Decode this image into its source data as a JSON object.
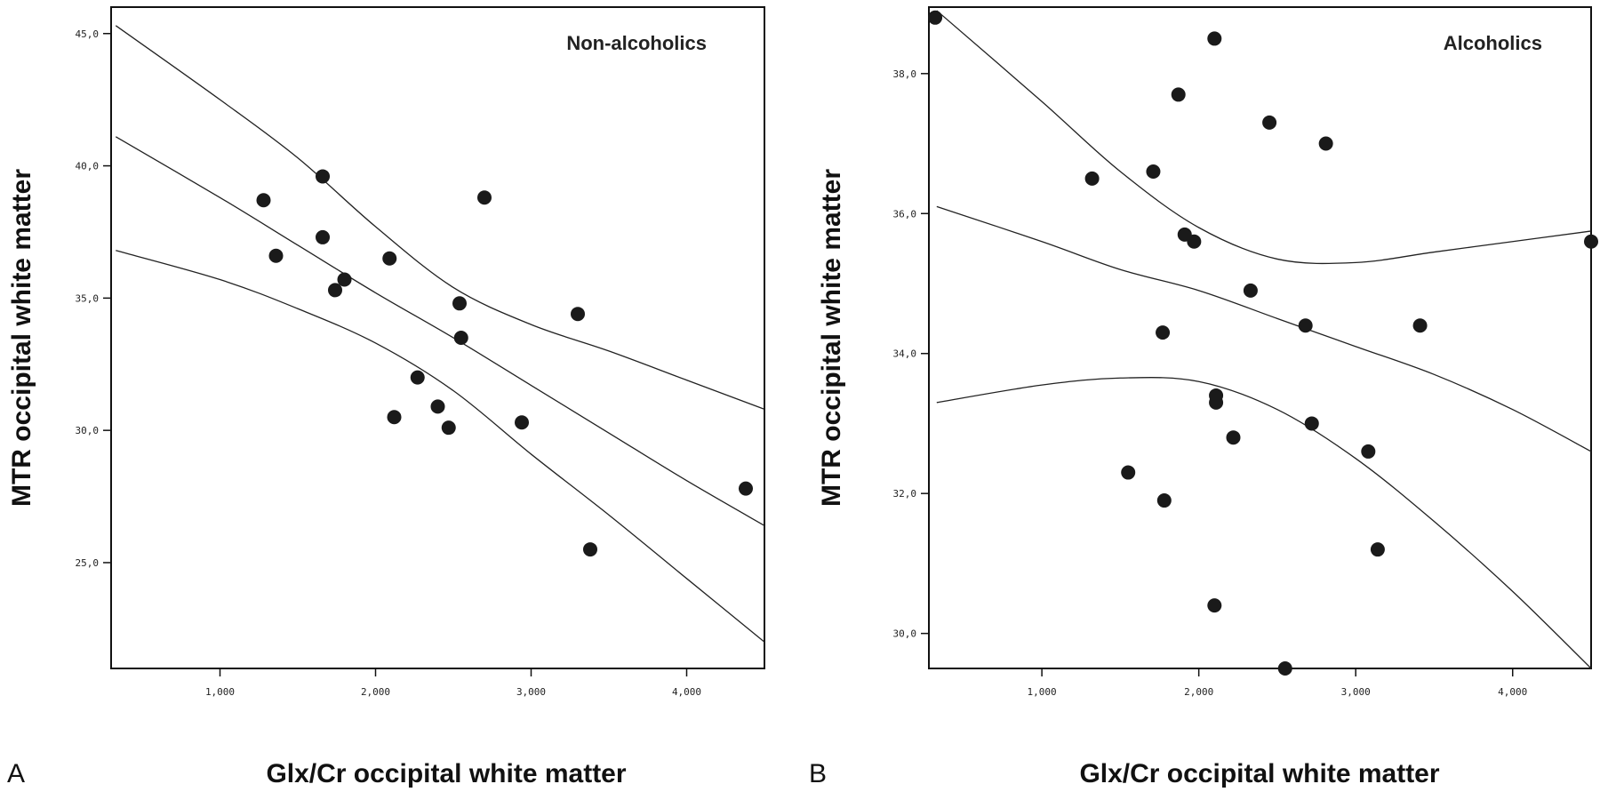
{
  "chart_data": [
    {
      "panel": "A",
      "type": "scatter",
      "annotation": "Non-alcoholics",
      "xlabel": "Glx/Cr occipital white matter",
      "ylabel": "MTR occipital white matter",
      "xlim": [
        0.3,
        4.5
      ],
      "ylim": [
        21.0,
        46.0
      ],
      "x_ticks": [
        1.0,
        2.0,
        3.0,
        4.0
      ],
      "y_ticks": [
        25.0,
        30.0,
        35.0,
        40.0,
        45.0
      ],
      "x_tick_labels": [
        "1,000",
        "2,000",
        "3,000",
        "4,000"
      ],
      "y_tick_labels": [
        "25,0",
        "30,0",
        "35,0",
        "40,0",
        "45,0"
      ],
      "points": [
        {
          "x": 1.28,
          "y": 38.7
        },
        {
          "x": 1.36,
          "y": 36.6
        },
        {
          "x": 1.66,
          "y": 39.6
        },
        {
          "x": 1.66,
          "y": 37.3
        },
        {
          "x": 1.74,
          "y": 35.3
        },
        {
          "x": 1.8,
          "y": 35.7
        },
        {
          "x": 2.09,
          "y": 36.5
        },
        {
          "x": 2.12,
          "y": 30.5
        },
        {
          "x": 2.27,
          "y": 32.0
        },
        {
          "x": 2.4,
          "y": 30.9
        },
        {
          "x": 2.47,
          "y": 30.1
        },
        {
          "x": 2.54,
          "y": 34.8
        },
        {
          "x": 2.55,
          "y": 33.5
        },
        {
          "x": 2.7,
          "y": 38.8
        },
        {
          "x": 2.94,
          "y": 30.3
        },
        {
          "x": 3.3,
          "y": 34.4
        },
        {
          "x": 3.38,
          "y": 25.5
        },
        {
          "x": 4.38,
          "y": 27.8
        }
      ],
      "lines": [
        {
          "name": "upper",
          "x": [
            0.33,
            1.0,
            1.5,
            2.0,
            2.5,
            3.0,
            3.5,
            4.0,
            4.5
          ],
          "y": [
            45.3,
            42.5,
            40.3,
            37.7,
            35.4,
            34.0,
            33.0,
            31.9,
            30.8
          ]
        },
        {
          "name": "fit",
          "x": [
            0.33,
            1.0,
            1.5,
            2.0,
            2.5,
            3.0,
            3.5,
            4.0,
            4.5
          ],
          "y": [
            41.1,
            38.8,
            37.0,
            35.2,
            33.5,
            31.7,
            29.9,
            28.1,
            26.4
          ]
        },
        {
          "name": "lower",
          "x": [
            0.33,
            1.0,
            1.5,
            2.0,
            2.5,
            3.0,
            3.5,
            4.0,
            4.5
          ],
          "y": [
            36.8,
            35.7,
            34.6,
            33.3,
            31.5,
            29.1,
            26.8,
            24.4,
            22.0
          ]
        }
      ]
    },
    {
      "panel": "B",
      "type": "scatter",
      "annotation": "Alcoholics",
      "xlabel": "Glx/Cr occipital white matter",
      "ylabel": "MTR occipital white matter",
      "xlim": [
        0.28,
        4.5
      ],
      "ylim": [
        29.5,
        38.95
      ],
      "x_ticks": [
        1.0,
        2.0,
        3.0,
        4.0
      ],
      "y_ticks": [
        30.0,
        32.0,
        34.0,
        36.0,
        38.0
      ],
      "x_tick_labels": [
        "1,000",
        "2,000",
        "3,000",
        "4,000"
      ],
      "y_tick_labels": [
        "30,0",
        "32,0",
        "34,0",
        "36,0",
        "38,0"
      ],
      "points": [
        {
          "x": 0.32,
          "y": 38.8
        },
        {
          "x": 2.1,
          "y": 38.5
        },
        {
          "x": 1.87,
          "y": 37.7
        },
        {
          "x": 2.45,
          "y": 37.3
        },
        {
          "x": 2.81,
          "y": 37.0
        },
        {
          "x": 1.32,
          "y": 36.5
        },
        {
          "x": 1.71,
          "y": 36.6
        },
        {
          "x": 1.91,
          "y": 35.7
        },
        {
          "x": 1.97,
          "y": 35.6
        },
        {
          "x": 4.5,
          "y": 35.6
        },
        {
          "x": 2.33,
          "y": 34.9
        },
        {
          "x": 1.77,
          "y": 34.3
        },
        {
          "x": 2.68,
          "y": 34.4
        },
        {
          "x": 3.41,
          "y": 34.4
        },
        {
          "x": 2.11,
          "y": 33.4
        },
        {
          "x": 2.11,
          "y": 33.3
        },
        {
          "x": 2.72,
          "y": 33.0
        },
        {
          "x": 2.22,
          "y": 32.8
        },
        {
          "x": 3.08,
          "y": 32.6
        },
        {
          "x": 1.55,
          "y": 32.3
        },
        {
          "x": 1.78,
          "y": 31.9
        },
        {
          "x": 3.14,
          "y": 31.2
        },
        {
          "x": 2.1,
          "y": 30.4
        },
        {
          "x": 2.55,
          "y": 29.5
        }
      ],
      "lines": [
        {
          "name": "upper",
          "x": [
            0.33,
            1.0,
            1.5,
            2.0,
            2.5,
            3.0,
            3.5,
            4.0,
            4.5
          ],
          "y": [
            38.9,
            37.6,
            36.6,
            35.8,
            35.35,
            35.3,
            35.45,
            35.6,
            35.75
          ]
        },
        {
          "name": "fit",
          "x": [
            0.33,
            1.0,
            1.5,
            2.0,
            2.5,
            3.0,
            3.5,
            4.0,
            4.5
          ],
          "y": [
            36.1,
            35.6,
            35.2,
            34.9,
            34.5,
            34.1,
            33.7,
            33.2,
            32.6
          ]
        },
        {
          "name": "lower",
          "x": [
            0.33,
            1.0,
            1.5,
            2.0,
            2.5,
            3.0,
            3.5,
            4.0,
            4.5
          ],
          "y": [
            33.3,
            33.55,
            33.65,
            33.6,
            33.2,
            32.5,
            31.6,
            30.6,
            29.5
          ]
        }
      ]
    }
  ]
}
